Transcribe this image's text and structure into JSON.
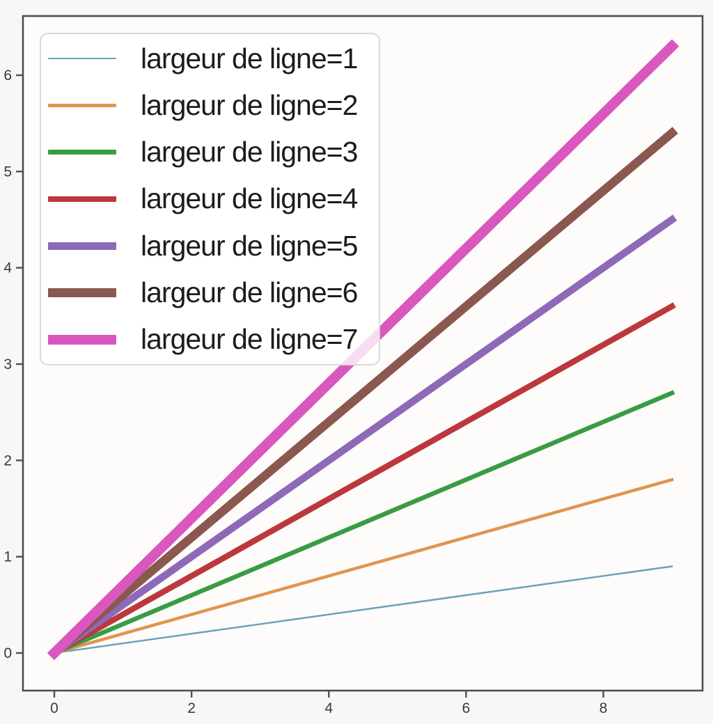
{
  "chart_data": {
    "type": "line",
    "title": "",
    "xlabel": "",
    "ylabel": "",
    "xlim": [
      -0.45,
      9.45
    ],
    "ylim": [
      -0.39,
      6.62
    ],
    "x_ticks": [
      "0",
      "2",
      "4",
      "6",
      "8"
    ],
    "x_tick_values": [
      0,
      2,
      4,
      6,
      8
    ],
    "y_ticks": [
      "0",
      "1",
      "2",
      "3",
      "4",
      "5",
      "6"
    ],
    "y_tick_values": [
      0,
      1,
      2,
      3,
      4,
      5,
      6
    ],
    "grid": false,
    "legend_position": "upper left",
    "series": [
      {
        "name": "largeur de ligne=1",
        "linewidth": 1,
        "color": "#6aa1bd",
        "x": [
          0,
          9
        ],
        "y": [
          0,
          0.9
        ]
      },
      {
        "name": "largeur de ligne=2",
        "linewidth": 2,
        "color": "#e0954f",
        "x": [
          0,
          9
        ],
        "y": [
          0,
          1.8
        ]
      },
      {
        "name": "largeur de ligne=3",
        "linewidth": 3,
        "color": "#399c45",
        "x": [
          0,
          9
        ],
        "y": [
          0,
          2.7
        ]
      },
      {
        "name": "largeur de ligne=4",
        "linewidth": 4,
        "color": "#bc383d",
        "x": [
          0,
          9
        ],
        "y": [
          0,
          3.6
        ]
      },
      {
        "name": "largeur de ligne=5",
        "linewidth": 5,
        "color": "#8d69b8",
        "x": [
          0,
          9
        ],
        "y": [
          0,
          4.5
        ]
      },
      {
        "name": "largeur de ligne=6",
        "linewidth": 6,
        "color": "#8a584e",
        "x": [
          0,
          9
        ],
        "y": [
          0,
          5.4
        ]
      },
      {
        "name": "largeur de ligne=7",
        "linewidth": 7,
        "color": "#d957bf",
        "x": [
          0,
          9
        ],
        "y": [
          0,
          6.3
        ]
      }
    ]
  },
  "figure": {
    "background": "#f8f7f5",
    "plot_background": "#fdfcfa",
    "spine_color": "#4f4f4f",
    "tick_color": "#4f4f4f",
    "tick_label_color": "#3a3a3a",
    "legend_border": "#dadada",
    "legend_background": "rgba(255,255,255,0.80)"
  }
}
